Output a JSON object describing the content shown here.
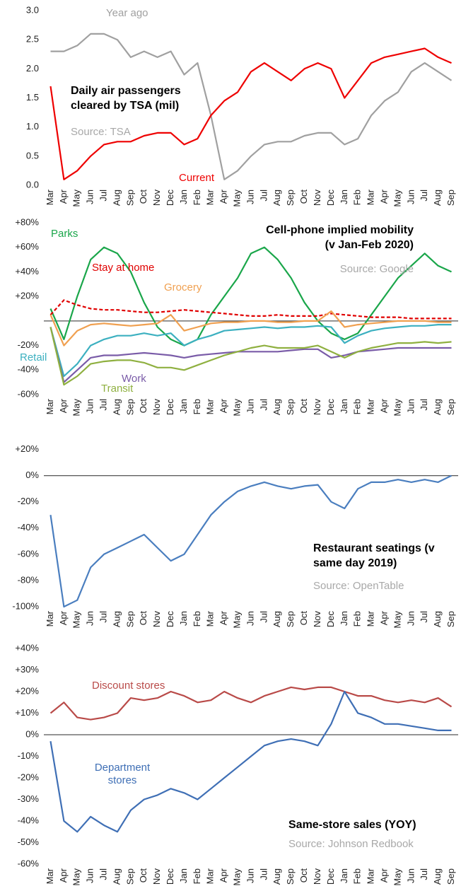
{
  "chart_data": [
    {
      "type": "line",
      "title": "Daily air passengers cleared by TSA (mil)",
      "source": "Source: TSA",
      "categories": [
        "Mar",
        "Apr",
        "May",
        "Jun",
        "Jul",
        "Aug",
        "Sep",
        "Oct",
        "Nov",
        "Dec",
        "Jan",
        "Feb",
        "Mar",
        "Apr",
        "May",
        "Jun",
        "Jul",
        "Aug",
        "Sep",
        "Oct",
        "Nov",
        "Dec",
        "Jan",
        "Feb",
        "Mar",
        "Apr",
        "May",
        "Jun",
        "Jul",
        "Aug",
        "Sep"
      ],
      "series": [
        {
          "name": "Year ago",
          "color": "#a0a0a0",
          "values": [
            2.3,
            2.3,
            2.4,
            2.6,
            2.6,
            2.5,
            2.2,
            2.3,
            2.2,
            2.3,
            1.9,
            2.1,
            1.2,
            0.1,
            0.25,
            0.5,
            0.7,
            0.75,
            0.75,
            0.85,
            0.9,
            0.9,
            0.7,
            0.8,
            1.2,
            1.45,
            1.6,
            1.95,
            2.1,
            1.95,
            1.8
          ]
        },
        {
          "name": "Current",
          "color": "#ee0000",
          "values": [
            1.7,
            0.1,
            0.25,
            0.5,
            0.7,
            0.75,
            0.75,
            0.85,
            0.9,
            0.9,
            0.7,
            0.8,
            1.2,
            1.45,
            1.6,
            1.95,
            2.1,
            1.95,
            1.8,
            2.0,
            2.1,
            2.0,
            1.5,
            1.8,
            2.1,
            2.2,
            2.25,
            2.3,
            2.35,
            2.2,
            2.1
          ]
        }
      ],
      "ylim": [
        0,
        3
      ],
      "yticks": [
        {
          "value": 0,
          "label": "0.0"
        },
        0.5,
        {
          "value": 1,
          "label": "1.0"
        },
        1.5,
        {
          "value": 2,
          "label": "2.0"
        },
        2.5,
        {
          "value": 3,
          "label": "3.0"
        }
      ],
      "zero_line": false
    },
    {
      "type": "line",
      "title": "Cell-phone implied mobility (v Jan-Feb 2020)",
      "source": "Source: Google",
      "categories": [
        "Mar",
        "Apr",
        "May",
        "Jun",
        "Jul",
        "Aug",
        "Sep",
        "Oct",
        "Nov",
        "Dec",
        "Jan",
        "Feb",
        "Mar",
        "Apr",
        "May",
        "Jun",
        "Jul",
        "Aug",
        "Sep",
        "Oct",
        "Nov",
        "Dec",
        "Jan",
        "Feb",
        "Mar",
        "Apr",
        "May",
        "Jun",
        "Jul",
        "Aug",
        "Sep"
      ],
      "series": [
        {
          "name": "Parks",
          "color": "#1aa64a",
          "values": [
            10,
            -15,
            20,
            50,
            60,
            55,
            40,
            15,
            -5,
            -15,
            -20,
            -15,
            5,
            20,
            35,
            55,
            60,
            50,
            35,
            15,
            0,
            -10,
            -15,
            -10,
            5,
            20,
            35,
            45,
            55,
            45,
            40
          ]
        },
        {
          "name": "Stay at home",
          "color": "#e00000",
          "dash": true,
          "values": [
            5,
            17,
            13,
            10,
            9,
            9,
            8,
            7,
            7,
            8,
            9,
            8,
            7,
            6,
            5,
            4,
            4,
            5,
            4,
            4,
            4,
            6,
            5,
            4,
            3,
            3,
            3,
            2,
            2,
            2,
            2
          ]
        },
        {
          "name": "Grocery",
          "color": "#f0a050",
          "values": [
            5,
            -20,
            -8,
            -3,
            -2,
            -3,
            -4,
            -3,
            -2,
            5,
            -8,
            -5,
            -2,
            -1,
            -1,
            0,
            0,
            -1,
            -1,
            0,
            0,
            8,
            -5,
            -3,
            -2,
            -1,
            0,
            0,
            0,
            -1,
            -1
          ]
        },
        {
          "name": "Retail",
          "color": "#3cb0c0",
          "values": [
            -5,
            -45,
            -35,
            -20,
            -15,
            -12,
            -12,
            -10,
            -12,
            -10,
            -20,
            -15,
            -12,
            -8,
            -7,
            -6,
            -5,
            -6,
            -5,
            -5,
            -4,
            -5,
            -18,
            -12,
            -8,
            -6,
            -5,
            -4,
            -4,
            -3,
            -3
          ]
        },
        {
          "name": "Work",
          "color": "#7a5ca8",
          "values": [
            -5,
            -50,
            -40,
            -30,
            -28,
            -28,
            -27,
            -26,
            -27,
            -28,
            -30,
            -28,
            -27,
            -26,
            -25,
            -25,
            -25,
            -25,
            -24,
            -23,
            -23,
            -30,
            -28,
            -25,
            -24,
            -23,
            -22,
            -22,
            -22,
            -22,
            -22
          ]
        },
        {
          "name": "Transit",
          "color": "#8fb040",
          "values": [
            -5,
            -52,
            -45,
            -35,
            -33,
            -32,
            -32,
            -34,
            -38,
            -38,
            -40,
            -36,
            -32,
            -28,
            -25,
            -22,
            -20,
            -22,
            -22,
            -22,
            -20,
            -25,
            -30,
            -25,
            -22,
            -20,
            -18,
            -18,
            -17,
            -18,
            -17
          ]
        }
      ],
      "ylim": [
        -60,
        80
      ],
      "yticks": [
        {
          "value": 80,
          "label": "+80%"
        },
        {
          "value": 60,
          "label": "+60%"
        },
        {
          "value": 40,
          "label": "+40%"
        },
        {
          "value": 20,
          "label": "+20%"
        },
        {
          "value": -20,
          "label": "-20%"
        },
        {
          "value": -40,
          "label": "-40%"
        },
        {
          "value": -60,
          "label": "-60%"
        }
      ],
      "zero_line": true
    },
    {
      "type": "line",
      "title": "Restaurant seatings (v same day 2019)",
      "source": "Source: OpenTable",
      "categories": [
        "Mar",
        "Apr",
        "May",
        "Jun",
        "Jul",
        "Aug",
        "Sep",
        "Oct",
        "Nov",
        "Dec",
        "Jan",
        "Feb",
        "Mar",
        "Apr",
        "May",
        "Jun",
        "Jul",
        "Aug",
        "Sep",
        "Oct",
        "Nov",
        "Dec",
        "Jan",
        "Feb",
        "Mar",
        "Apr",
        "May",
        "Jun",
        "Jul",
        "Aug",
        "Sep"
      ],
      "series": [
        {
          "color": "#4a7ebf",
          "values": [
            -30,
            -100,
            -95,
            -70,
            -60,
            -55,
            -50,
            -45,
            -55,
            -65,
            -60,
            -45,
            -30,
            -20,
            -12,
            -8,
            -5,
            -8,
            -10,
            -8,
            -7,
            -20,
            -25,
            -10,
            -5,
            -5,
            -3,
            -5,
            -3,
            -5,
            0
          ]
        }
      ],
      "ylim": [
        -100,
        30
      ],
      "yticks": [
        {
          "value": 20,
          "label": "+20%"
        },
        {
          "value": 0,
          "label": "0%"
        },
        {
          "value": -20,
          "label": "-20%"
        },
        {
          "value": -40,
          "label": "-40%"
        },
        {
          "value": -60,
          "label": "-60%"
        },
        {
          "value": -80,
          "label": "-80%"
        },
        {
          "value": -100,
          "label": "-100%"
        }
      ],
      "zero_line": true
    },
    {
      "type": "line",
      "title": "Same-store sales (YOY)",
      "source": "Source: Johnson Redbook",
      "categories": [
        "Mar",
        "Apr",
        "May",
        "Jun",
        "Jul",
        "Aug",
        "Sep",
        "Oct",
        "Nov",
        "Dec",
        "Jan",
        "Feb",
        "Mar",
        "Apr",
        "May",
        "Jun",
        "Jul",
        "Aug",
        "Sep",
        "Oct",
        "Nov",
        "Dec",
        "Jan",
        "Feb",
        "Mar",
        "Apr",
        "May",
        "Jun",
        "Jul",
        "Aug",
        "Sep"
      ],
      "series": [
        {
          "name": "Discount stores",
          "color": "#b94a48",
          "values": [
            10,
            15,
            8,
            7,
            8,
            10,
            17,
            16,
            17,
            20,
            18,
            15,
            16,
            20,
            17,
            15,
            18,
            20,
            22,
            21,
            22,
            22,
            20,
            18,
            18,
            16,
            15,
            16,
            15,
            17,
            13
          ]
        },
        {
          "name": "Department stores",
          "color": "#3f6fb5",
          "values": [
            -3,
            -40,
            -45,
            -38,
            -42,
            -45,
            -35,
            -30,
            -28,
            -25,
            -27,
            -30,
            -25,
            -20,
            -15,
            -10,
            -5,
            -3,
            -2,
            -3,
            -5,
            5,
            20,
            10,
            8,
            5,
            5,
            4,
            3,
            2,
            2
          ]
        }
      ],
      "ylim": [
        -60,
        40
      ],
      "yticks": [
        {
          "value": 40,
          "label": "+40%"
        },
        {
          "value": 30,
          "label": "+30%"
        },
        {
          "value": 20,
          "label": "+20%"
        },
        {
          "value": 10,
          "label": "+10%"
        },
        {
          "value": 0,
          "label": "0%"
        },
        {
          "value": -10,
          "label": "-10%"
        },
        {
          "value": -20,
          "label": "-20%"
        },
        {
          "value": -30,
          "label": "-30%"
        },
        {
          "value": -40,
          "label": "-40%"
        },
        {
          "value": -50,
          "label": "-50%"
        },
        {
          "value": -60,
          "label": "-60%"
        }
      ],
      "zero_line": true
    }
  ]
}
